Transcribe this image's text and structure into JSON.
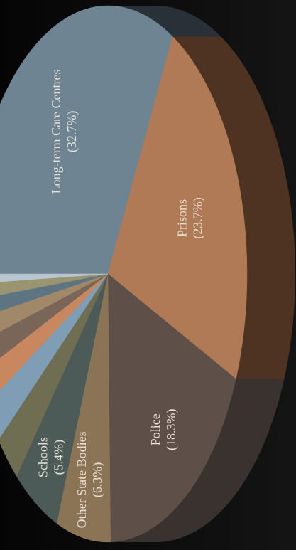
{
  "chart_data": {
    "type": "pie",
    "title": "",
    "slices": [
      {
        "label": "Long-term Care Centres",
        "pct_label": "(32.7%)",
        "value": 32.7,
        "color": "#6f8493",
        "side": "#2a3038",
        "show_label": true
      },
      {
        "label": "Prisons",
        "pct_label": "(23.7%)",
        "value": 23.7,
        "color": "#b07a56",
        "side": "#4e3322",
        "show_label": true
      },
      {
        "label": "Police",
        "pct_label": "(18.3%)",
        "value": 18.3,
        "color": "#5e5048",
        "side": "#3a322e",
        "show_label": true
      },
      {
        "label": "Other State Bodies",
        "pct_label": "(6.3%)",
        "value": 6.3,
        "color": "#8b7456",
        "side": "#4a3e2f",
        "show_label": true
      },
      {
        "label": "Schools",
        "pct_label": "(5.4%)",
        "value": 5.4,
        "color": "#4c5a58",
        "side": "#2f3736",
        "show_label": true
      },
      {
        "label": "",
        "pct_label": "",
        "value": 3.0,
        "color": "#6f6e52",
        "side": "#3c3b2c",
        "show_label": false
      },
      {
        "label": "",
        "pct_label": "",
        "value": 2.5,
        "color": "#7f9db5",
        "side": "#3d4c58",
        "show_label": false
      },
      {
        "label": "",
        "pct_label": "",
        "value": 2.0,
        "color": "#c8875f",
        "side": "#5a3d2b",
        "show_label": false
      },
      {
        "label": "",
        "pct_label": "",
        "value": 1.8,
        "color": "#7a6658",
        "side": "#3e342d",
        "show_label": false
      },
      {
        "label": "",
        "pct_label": "",
        "value": 1.5,
        "color": "#a08868",
        "side": "#4e4333",
        "show_label": false
      },
      {
        "label": "",
        "pct_label": "",
        "value": 1.2,
        "color": "#5d7582",
        "side": "#2e3a41",
        "show_label": false
      },
      {
        "label": "",
        "pct_label": "",
        "value": 1.0,
        "color": "#9a9470",
        "side": "#4a4736",
        "show_label": false
      },
      {
        "label": "",
        "pct_label": "",
        "value": 0.6,
        "color": "#b9c6d2",
        "side": "#5a6169",
        "show_label": false
      }
    ]
  }
}
